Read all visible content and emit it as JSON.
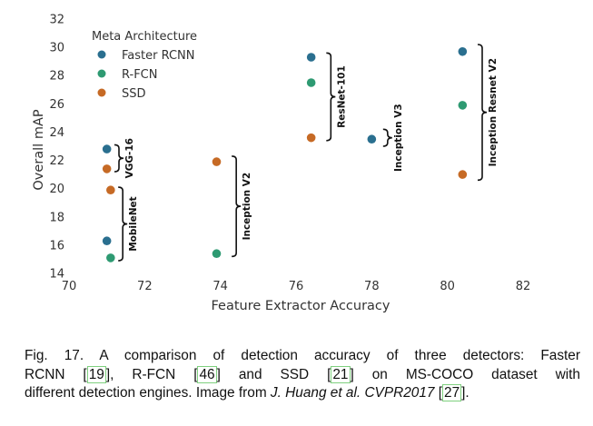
{
  "chart_data": {
    "type": "scatter",
    "xlabel": "Feature Extractor Accuracy",
    "ylabel": "Overall mAP",
    "xlim": [
      70,
      82
    ],
    "ylim": [
      14,
      32
    ],
    "xticks": [
      "70",
      "72",
      "74",
      "76",
      "78",
      "80",
      "82"
    ],
    "yticks": [
      "14",
      "16",
      "18",
      "20",
      "22",
      "24",
      "26",
      "28",
      "30",
      "32"
    ],
    "grid": false,
    "legend": {
      "title": "Meta Architecture",
      "position": "top-left",
      "entries": [
        "Faster RCNN",
        "R-FCN",
        "SSD"
      ]
    },
    "series": [
      {
        "name": "Faster RCNN",
        "color": "#2a6f8f",
        "points": [
          {
            "x": 71.0,
            "y": 22.8
          },
          {
            "x": 71.0,
            "y": 16.3
          },
          {
            "x": 76.4,
            "y": 29.3
          },
          {
            "x": 78.0,
            "y": 23.5
          },
          {
            "x": 80.4,
            "y": 29.7
          }
        ]
      },
      {
        "name": "R-FCN",
        "color": "#2e9a72",
        "points": [
          {
            "x": 71.1,
            "y": 15.1
          },
          {
            "x": 73.9,
            "y": 15.4
          },
          {
            "x": 76.4,
            "y": 27.5
          },
          {
            "x": 80.4,
            "y": 25.9
          }
        ]
      },
      {
        "name": "SSD",
        "color": "#c66a25",
        "points": [
          {
            "x": 71.0,
            "y": 21.4
          },
          {
            "x": 71.1,
            "y": 19.9
          },
          {
            "x": 73.9,
            "y": 21.9
          },
          {
            "x": 76.4,
            "y": 23.6
          },
          {
            "x": 80.4,
            "y": 21.0
          }
        ]
      }
    ],
    "annotations": [
      {
        "text": "VGG-16",
        "x": 71.2,
        "y_range": [
          21.2,
          23.1
        ]
      },
      {
        "text": "MobileNet",
        "x": 71.3,
        "y_range": [
          14.9,
          20.1
        ]
      },
      {
        "text": "Inception V2",
        "x": 74.3,
        "y_range": [
          15.2,
          22.3
        ]
      },
      {
        "text": "ResNet-101",
        "x": 76.8,
        "y_range": [
          23.4,
          29.6
        ]
      },
      {
        "text": "Inception V3",
        "x": 78.3,
        "y_range": [
          23.0,
          24.2
        ]
      },
      {
        "text": "Inception Resnet V2",
        "x": 80.8,
        "y_range": [
          20.6,
          30.2
        ]
      }
    ]
  },
  "caption": {
    "line1": [
      "Fig. 17. A comparison of detection accuracy of three detectors: Faster"
    ],
    "line2": [
      "RCNN ",
      "[19]",
      ", R-FCN ",
      "[46]",
      " and SSD ",
      "[21]",
      " on MS-COCO dataset with"
    ],
    "line3": [
      "different detection engines. Image from ",
      "J. Huang et al. CVPR2017",
      " ",
      "[27]",
      "."
    ]
  }
}
